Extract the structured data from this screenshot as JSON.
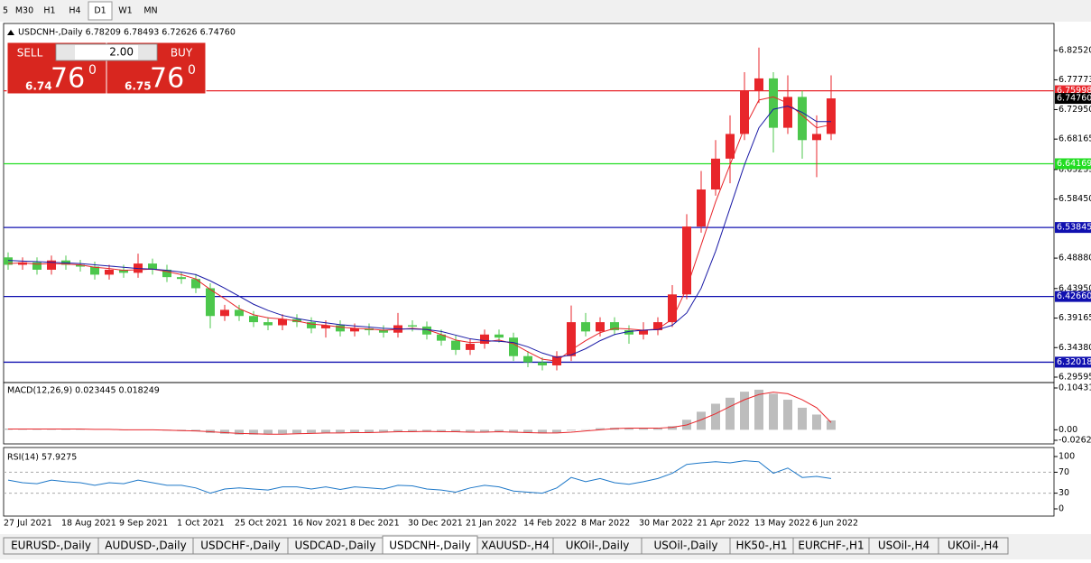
{
  "toolbar": {
    "buttons": [
      "5",
      "M30",
      "H1",
      "H4",
      "D1",
      "W1",
      "MN"
    ],
    "active": 4
  },
  "trade_panel": {
    "sell": "SELL",
    "buy": "BUY",
    "volume": "2.00",
    "bid": {
      "prefix": "6.74",
      "big": "76",
      "sup": "0"
    },
    "ask": {
      "prefix": "6.75",
      "big": "76",
      "sup": "0"
    }
  },
  "tabs": {
    "items": [
      "EURUSD-,Daily",
      "AUDUSD-,Daily",
      "USDCHF-,Daily",
      "USDCAD-,Daily",
      "USDCNH-,Daily",
      "XAUUSD-,H4",
      "UKOil-,Daily",
      "USOil-,Daily",
      "HK50-,H1",
      "EURCHF-,H1",
      "USOil-,H4",
      "UKOil-,H4"
    ],
    "active": 4
  },
  "chart_data": [
    {
      "type": "candlestick",
      "title": "USDCNH-,Daily 6.78209 6.78493 6.72626 6.74760",
      "categories": [
        "27 Jul 2021",
        null,
        null,
        null,
        "18 Aug 2021",
        null,
        null,
        null,
        "9 Sep 2021",
        null,
        null,
        null,
        "1 Oct 2021",
        null,
        null,
        null,
        "25 Oct 2021",
        null,
        null,
        null,
        "16 Nov 2021",
        null,
        null,
        null,
        "8 Dec 2021",
        null,
        null,
        null,
        "30 Dec 2021",
        null,
        null,
        null,
        "21 Jan 2022",
        null,
        null,
        null,
        "14 Feb 2022",
        null,
        null,
        null,
        "8 Mar 2022",
        null,
        null,
        null,
        "30 Mar 2022",
        null,
        null,
        null,
        "21 Apr 2022",
        null,
        null,
        null,
        "13 May 2022",
        null,
        null,
        null,
        "6 Jun 2022",
        null
      ],
      "open": [
        6.49,
        6.478,
        6.482,
        6.47,
        6.485,
        6.478,
        6.475,
        6.462,
        6.47,
        6.465,
        6.48,
        6.47,
        6.458,
        6.455,
        6.44,
        6.395,
        6.405,
        6.395,
        6.385,
        6.38,
        6.39,
        6.385,
        6.375,
        6.38,
        6.37,
        6.375,
        6.372,
        6.368,
        6.38,
        6.378,
        6.365,
        6.355,
        6.34,
        6.35,
        6.365,
        6.36,
        6.33,
        6.32,
        6.315,
        6.33,
        6.385,
        6.37,
        6.385,
        6.372,
        6.365,
        6.372,
        6.385,
        6.43,
        6.54,
        6.6,
        6.65,
        6.69,
        6.76,
        6.78,
        6.7,
        6.75,
        6.68,
        6.69
      ],
      "high": [
        6.498,
        6.49,
        6.49,
        6.493,
        6.493,
        6.486,
        6.483,
        6.478,
        6.478,
        6.496,
        6.488,
        6.478,
        6.466,
        6.463,
        6.448,
        6.413,
        6.413,
        6.403,
        6.393,
        6.398,
        6.398,
        6.393,
        6.388,
        6.388,
        6.383,
        6.383,
        6.38,
        6.4,
        6.388,
        6.386,
        6.373,
        6.363,
        6.358,
        6.373,
        6.373,
        6.368,
        6.338,
        6.328,
        6.338,
        6.412,
        6.4,
        6.393,
        6.393,
        6.38,
        6.385,
        6.393,
        6.445,
        6.56,
        6.63,
        6.68,
        6.72,
        6.79,
        6.83,
        6.79,
        6.785,
        6.76,
        6.72,
        6.78493
      ],
      "low": [
        6.47,
        6.47,
        6.462,
        6.462,
        6.47,
        6.467,
        6.454,
        6.454,
        6.457,
        6.457,
        6.462,
        6.45,
        6.447,
        6.432,
        6.375,
        6.387,
        6.387,
        6.377,
        6.372,
        6.372,
        6.377,
        6.367,
        6.36,
        6.362,
        6.362,
        6.364,
        6.36,
        6.36,
        6.37,
        6.357,
        6.347,
        6.332,
        6.332,
        6.342,
        6.352,
        6.322,
        6.312,
        6.307,
        6.307,
        6.322,
        6.362,
        6.362,
        6.364,
        6.35,
        6.357,
        6.364,
        6.377,
        6.422,
        6.53,
        6.59,
        6.61,
        6.68,
        6.74,
        6.66,
        6.69,
        6.65,
        6.62,
        6.68
      ],
      "close": [
        6.478,
        6.482,
        6.47,
        6.485,
        6.478,
        6.475,
        6.462,
        6.47,
        6.465,
        6.48,
        6.47,
        6.458,
        6.455,
        6.44,
        6.395,
        6.405,
        6.395,
        6.385,
        6.38,
        6.39,
        6.385,
        6.375,
        6.38,
        6.37,
        6.375,
        6.372,
        6.368,
        6.38,
        6.378,
        6.365,
        6.355,
        6.34,
        6.35,
        6.365,
        6.36,
        6.33,
        6.32,
        6.315,
        6.33,
        6.385,
        6.37,
        6.385,
        6.372,
        6.365,
        6.372,
        6.385,
        6.43,
        6.54,
        6.6,
        6.65,
        6.69,
        6.76,
        6.78,
        6.7,
        6.75,
        6.68,
        6.69,
        6.7476
      ],
      "up_color": "#e8262b",
      "down_color": "#4cc74c",
      "ma": [
        {
          "color": "#e8262b",
          "values": [
            6.48,
            6.481,
            6.479,
            6.48,
            6.479,
            6.478,
            6.474,
            6.472,
            6.469,
            6.47,
            6.471,
            6.467,
            6.462,
            6.455,
            6.438,
            6.423,
            6.407,
            6.397,
            6.392,
            6.39,
            6.387,
            6.382,
            6.38,
            6.377,
            6.375,
            6.374,
            6.372,
            6.373,
            6.375,
            6.373,
            6.365,
            6.356,
            6.352,
            6.353,
            6.356,
            6.35,
            6.337,
            6.325,
            6.322,
            6.34,
            6.355,
            6.368,
            6.375,
            6.374,
            6.372,
            6.374,
            6.39,
            6.44,
            6.51,
            6.58,
            6.64,
            6.7,
            6.745,
            6.75,
            6.74,
            6.72,
            6.7,
            6.705
          ]
        },
        {
          "color": "#1a1aa6",
          "values": [
            6.485,
            6.484,
            6.483,
            6.482,
            6.481,
            6.48,
            6.478,
            6.476,
            6.474,
            6.472,
            6.471,
            6.469,
            6.466,
            6.462,
            6.452,
            6.44,
            6.427,
            6.414,
            6.404,
            6.396,
            6.391,
            6.387,
            6.384,
            6.381,
            6.379,
            6.377,
            6.375,
            6.374,
            6.374,
            6.373,
            6.37,
            6.364,
            6.358,
            6.355,
            6.354,
            6.352,
            6.345,
            6.335,
            6.328,
            6.332,
            6.342,
            6.355,
            6.365,
            6.37,
            6.372,
            6.373,
            6.38,
            6.4,
            6.44,
            6.5,
            6.57,
            6.64,
            6.7,
            6.73,
            6.735,
            6.725,
            6.71,
            6.71
          ]
        }
      ],
      "levels": [
        {
          "value": 6.75998,
          "color": "#e8262b"
        },
        {
          "value": 6.64169,
          "color": "#22dd22"
        },
        {
          "value": 6.53845,
          "color": "#1010b0"
        },
        {
          "value": 6.4266,
          "label": "6.42660",
          "color": "#1010b0"
        },
        {
          "value": 6.32018,
          "color": "#1010b0"
        }
      ],
      "current": {
        "value": 6.7476,
        "label": "6.74760",
        "color": "#000000"
      },
      "ylim": [
        6.2901,
        6.8661
      ],
      "yticks": [
        {
          "value": 6.8252,
          "label": "6.82520"
        },
        6.77773,
        {
          "value": 6.7295,
          "label": "6.72950"
        },
        6.68165,
        6.63235,
        {
          "value": 6.5845,
          "label": "6.58450"
        },
        {
          "value": 6.4888,
          "label": "6.48880"
        },
        {
          "value": 6.4395,
          "label": "6.43950"
        },
        6.39165,
        {
          "value": 6.3438,
          "label": "6.34380"
        },
        6.29595
      ]
    },
    {
      "type": "macd",
      "title": "MACD(12,26,9) 0.023445 0.018249",
      "color": "#bdbdbd",
      "signal_color": "#e8262b",
      "values": [
        0.003,
        0.003,
        0.002,
        0.003,
        0.002,
        0.001,
        0.0,
        0.0,
        -0.001,
        0.0,
        0.0,
        -0.002,
        -0.003,
        -0.004,
        -0.008,
        -0.01,
        -0.012,
        -0.012,
        -0.011,
        -0.01,
        -0.009,
        -0.008,
        -0.007,
        -0.007,
        -0.006,
        -0.006,
        -0.005,
        -0.004,
        -0.004,
        -0.004,
        -0.005,
        -0.006,
        -0.006,
        -0.005,
        -0.005,
        -0.007,
        -0.008,
        -0.009,
        -0.007,
        -0.002,
        0.001,
        0.004,
        0.005,
        0.004,
        0.004,
        0.005,
        0.009,
        0.025,
        0.045,
        0.065,
        0.08,
        0.095,
        0.1,
        0.09,
        0.075,
        0.055,
        0.038,
        0.023445
      ],
      "signal": [
        0.002,
        0.002,
        0.002,
        0.002,
        0.002,
        0.002,
        0.001,
        0.001,
        0.0,
        0.0,
        0.0,
        -0.001,
        -0.002,
        -0.003,
        -0.005,
        -0.007,
        -0.009,
        -0.01,
        -0.011,
        -0.011,
        -0.01,
        -0.009,
        -0.008,
        -0.008,
        -0.007,
        -0.007,
        -0.006,
        -0.005,
        -0.005,
        -0.004,
        -0.005,
        -0.005,
        -0.006,
        -0.006,
        -0.005,
        -0.006,
        -0.007,
        -0.008,
        -0.008,
        -0.006,
        -0.003,
        0.0,
        0.003,
        0.004,
        0.004,
        0.004,
        0.006,
        0.012,
        0.025,
        0.04,
        0.058,
        0.075,
        0.088,
        0.094,
        0.09,
        0.075,
        0.055,
        0.018249
      ],
      "ylim": [
        -0.026249,
        0.104313
      ],
      "yticks": [
        0.104313,
        {
          "value": 0,
          "label": "0.00"
        },
        -0.026249
      ]
    },
    {
      "type": "line",
      "title": "RSI(14) 57.9275",
      "color": "#1e78c8",
      "values": [
        55,
        50,
        48,
        55,
        52,
        50,
        45,
        50,
        48,
        55,
        50,
        45,
        45,
        40,
        30,
        38,
        40,
        38,
        36,
        42,
        42,
        38,
        42,
        37,
        42,
        40,
        38,
        45,
        44,
        38,
        36,
        32,
        40,
        45,
        42,
        34,
        32,
        30,
        40,
        60,
        52,
        58,
        50,
        47,
        52,
        58,
        68,
        85,
        88,
        90,
        88,
        92,
        90,
        68,
        78,
        60,
        62,
        57.9275
      ],
      "levels": [
        70,
        30
      ],
      "ylim": [
        0,
        100
      ],
      "yticks": [
        100,
        70,
        30,
        0
      ]
    }
  ]
}
